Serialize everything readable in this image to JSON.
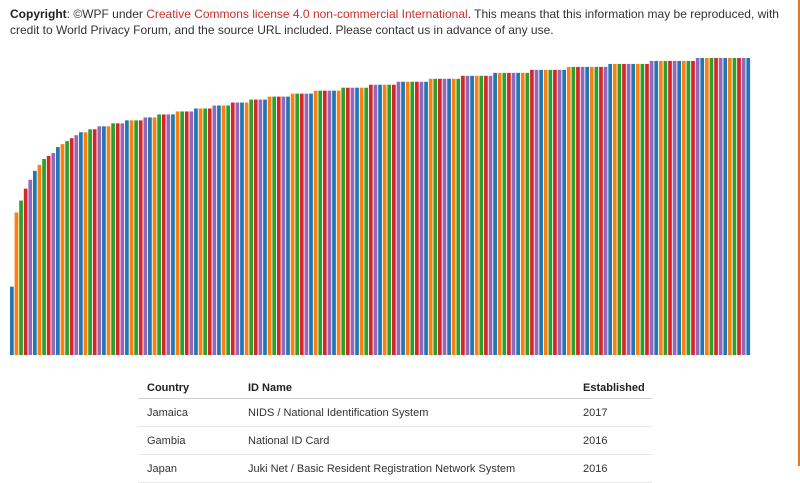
{
  "copyright": {
    "label": "Copyright",
    "text_before": ": ©WPF under ",
    "license_link": "Creative Commons license 4.0 non-commercial International",
    "text_after": ". This means that this information may be reproduced, with credit to World Privacy Forum, and the source URL included. Please contact us in advance of any use."
  },
  "chart_data": {
    "type": "bar",
    "series_colors": [
      "#1f77b4",
      "#ff7f0e",
      "#2ca02c",
      "#d62728",
      "#9467bd"
    ],
    "values": [
      0.23,
      0.48,
      0.52,
      0.56,
      0.59,
      0.62,
      0.64,
      0.66,
      0.67,
      0.68,
      0.7,
      0.71,
      0.72,
      0.73,
      0.74,
      0.75,
      0.75,
      0.76,
      0.76,
      0.77,
      0.77,
      0.77,
      0.78,
      0.78,
      0.78,
      0.79,
      0.79,
      0.79,
      0.79,
      0.8,
      0.8,
      0.8,
      0.81,
      0.81,
      0.81,
      0.81,
      0.82,
      0.82,
      0.82,
      0.82,
      0.83,
      0.83,
      0.83,
      0.83,
      0.84,
      0.84,
      0.84,
      0.84,
      0.85,
      0.85,
      0.85,
      0.85,
      0.86,
      0.86,
      0.86,
      0.86,
      0.87,
      0.87,
      0.87,
      0.87,
      0.87,
      0.88,
      0.88,
      0.88,
      0.88,
      0.88,
      0.89,
      0.89,
      0.89,
      0.89,
      0.89,
      0.89,
      0.9,
      0.9,
      0.9,
      0.9,
      0.9,
      0.9,
      0.91,
      0.91,
      0.91,
      0.91,
      0.91,
      0.91,
      0.92,
      0.92,
      0.92,
      0.92,
      0.92,
      0.92,
      0.92,
      0.93,
      0.93,
      0.93,
      0.93,
      0.93,
      0.93,
      0.93,
      0.94,
      0.94,
      0.94,
      0.94,
      0.94,
      0.94,
      0.94,
      0.95,
      0.95,
      0.95,
      0.95,
      0.95,
      0.95,
      0.95,
      0.95,
      0.96,
      0.96,
      0.96,
      0.96,
      0.96,
      0.96,
      0.96,
      0.96,
      0.97,
      0.97,
      0.97,
      0.97,
      0.97,
      0.97,
      0.97,
      0.97,
      0.97,
      0.98,
      0.98,
      0.98,
      0.98,
      0.98,
      0.98,
      0.98,
      0.98,
      0.98,
      0.99,
      0.99,
      0.99,
      0.99,
      0.99,
      0.99,
      0.99,
      0.99,
      0.99,
      0.99,
      1.0,
      1.0,
      1.0,
      1.0,
      1.0,
      1.0,
      1.0,
      1.0,
      1.0,
      1.0,
      1.0,
      1.0
    ],
    "ylim": [
      0,
      1
    ]
  },
  "table": {
    "headers": [
      "Country",
      "ID Name",
      "Established"
    ],
    "rows": [
      [
        "Jamaica",
        "NIDS / National Identification System",
        "2017"
      ],
      [
        "Gambia",
        "National ID Card",
        "2016"
      ],
      [
        "Japan",
        "Juki Net / Basic Resident Registration Network System",
        "2016"
      ]
    ]
  }
}
